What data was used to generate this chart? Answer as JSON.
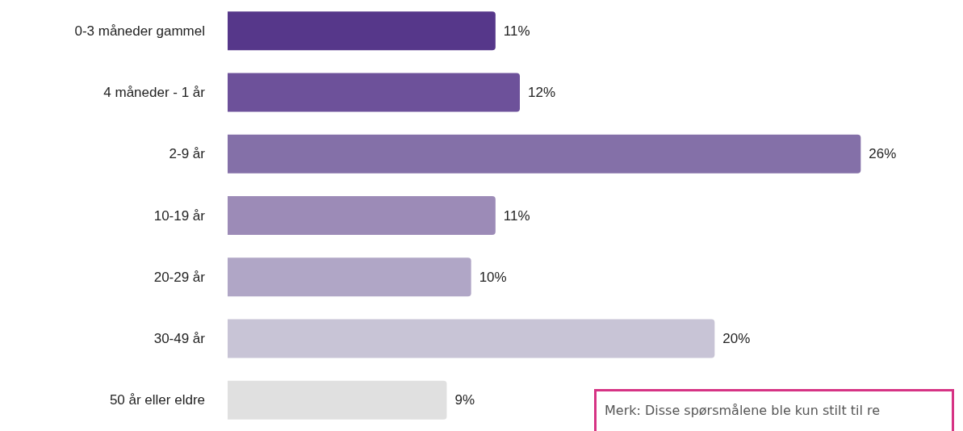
{
  "chart_data": {
    "type": "bar",
    "orientation": "horizontal",
    "categories": [
      "0-3 måneder gammel",
      "4 måneder - 1 år",
      "2-9 år",
      "10-19 år",
      "20-29 år",
      "30-49 år",
      "50 år eller eldre"
    ],
    "values": [
      11,
      12,
      26,
      11,
      10,
      20,
      9
    ],
    "colors": [
      "#56378a",
      "#6d519a",
      "#8470a8",
      "#9c8bb7",
      "#b0a6c6",
      "#c8c4d6",
      "#e0e0e0"
    ],
    "value_labels": [
      "11%",
      "12%",
      "26%",
      "11%",
      "10%",
      "20%",
      "9%"
    ],
    "annotations": [
      "Merk: Disse spørsmålene ble kun stilt til re"
    ]
  }
}
